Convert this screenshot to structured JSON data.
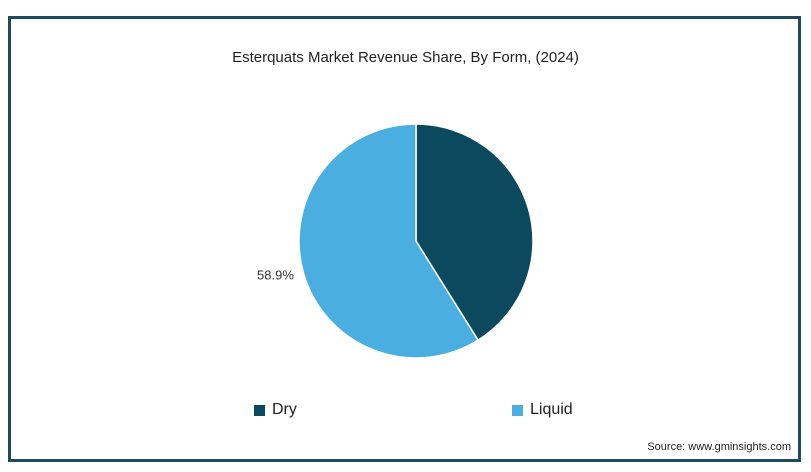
{
  "chart_data": {
    "type": "pie",
    "title": "Esterquats Market Revenue Share, By Form, (2024)",
    "categories": [
      "Dry",
      "Liquid"
    ],
    "values": [
      41.1,
      58.9
    ],
    "colors": [
      "#0b4a5e",
      "#4aaee0"
    ],
    "data_labels": [
      "",
      "58.9%"
    ],
    "legend_position": "bottom"
  },
  "source": "Source: www.gminsights.com"
}
